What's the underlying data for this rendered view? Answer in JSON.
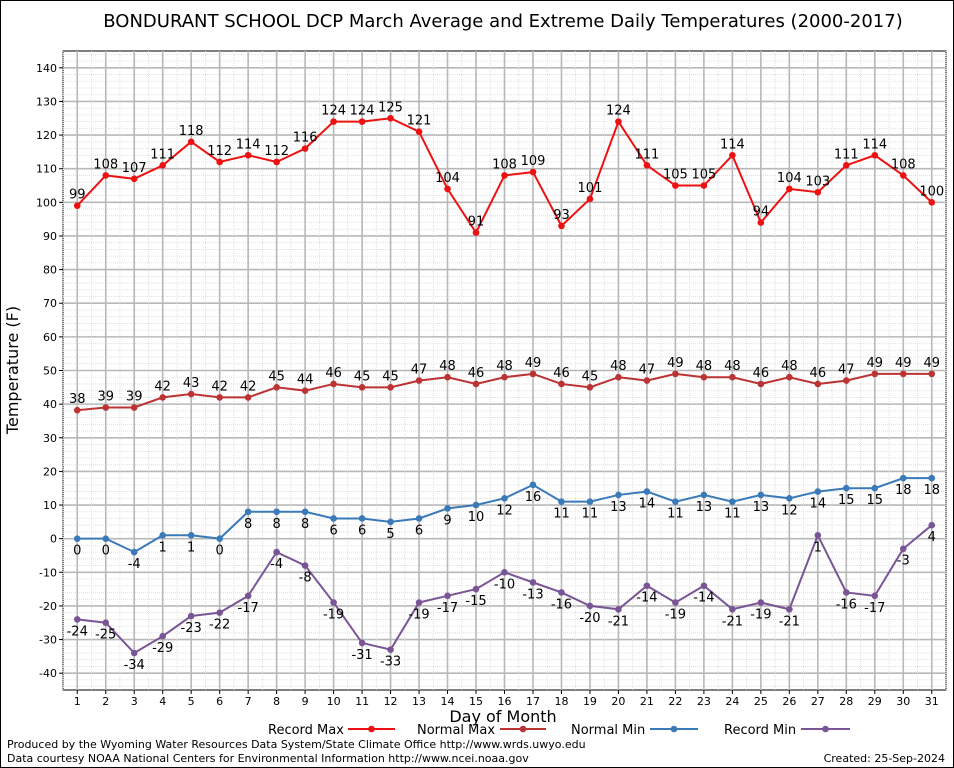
{
  "chart_data": {
    "type": "line",
    "title": "BONDURANT SCHOOL DCP March Average and Extreme Daily Temperatures (2000-2017)",
    "xlabel": "Day of Month",
    "ylabel": "Temperature (F)",
    "ylim": [
      -45,
      145
    ],
    "yticks": [
      -40,
      -30,
      -20,
      -10,
      0,
      10,
      20,
      30,
      40,
      50,
      60,
      70,
      80,
      90,
      100,
      110,
      120,
      130,
      140
    ],
    "x": [
      1,
      2,
      3,
      4,
      5,
      6,
      7,
      8,
      9,
      10,
      11,
      12,
      13,
      14,
      15,
      16,
      17,
      18,
      19,
      20,
      21,
      22,
      23,
      24,
      25,
      26,
      27,
      28,
      29,
      30,
      31
    ],
    "grid": true,
    "legend_position": "bottom",
    "series": [
      {
        "name": "Record Max",
        "color": "#ee1111",
        "label_position": "above",
        "values": [
          99,
          108,
          107,
          111,
          118,
          112,
          114,
          112,
          116,
          124,
          124,
          125,
          121,
          104,
          91,
          108,
          109,
          93,
          101,
          124,
          111,
          105,
          105,
          114,
          94,
          104,
          103,
          111,
          114,
          108,
          100
        ]
      },
      {
        "name": "Normal Max",
        "color": "#bb3333",
        "label_position": "above",
        "values": [
          38.2,
          39,
          39,
          42,
          43,
          42,
          42,
          45,
          44,
          46,
          45,
          45,
          47,
          48,
          46,
          48,
          49,
          46,
          45,
          48,
          47,
          49,
          48,
          48,
          46,
          48,
          46,
          47,
          49,
          49,
          49
        ]
      },
      {
        "name": "Normal Min",
        "color": "#3a7ab8",
        "label_position": "below",
        "values": [
          0,
          0,
          -4,
          1,
          1,
          0,
          8,
          8,
          8,
          6,
          6,
          5,
          6,
          9,
          10,
          12,
          16,
          11,
          11,
          13,
          14,
          11,
          13,
          11,
          13,
          12,
          14,
          15,
          15,
          18,
          18
        ],
        "labels": [
          "0",
          "0",
          "-4",
          "1",
          "1",
          "0",
          "8",
          "8",
          "8",
          "6",
          "6",
          "5",
          "6",
          "9",
          "10",
          "12",
          "16",
          "11",
          "11",
          "13",
          "14",
          "11",
          "13",
          "11",
          "13",
          "12",
          "14",
          "15",
          "15",
          "18",
          "18"
        ]
      },
      {
        "name": "Record Min",
        "color": "#7a5596",
        "label_position": "below",
        "values": [
          -24,
          -25,
          -34,
          -29,
          -23,
          -22,
          -17,
          -4,
          -8,
          -19,
          -31,
          -33,
          -19,
          -17,
          -15,
          -10,
          -13,
          -16,
          -20,
          -21,
          -14,
          -19,
          -14,
          -21,
          -19,
          -21,
          1,
          -16,
          -17,
          -3,
          4
        ]
      }
    ]
  },
  "legend": [
    {
      "label": "Record Max",
      "color": "#ee1111"
    },
    {
      "label": "Normal Max",
      "color": "#bb3333"
    },
    {
      "label": "Normal Min",
      "color": "#3a7ab8"
    },
    {
      "label": "Record Min",
      "color": "#7a5596"
    }
  ],
  "footer": {
    "produced_by": "Produced by the Wyoming Water Resources Data System/State Climate Office http://www.wrds.uwyo.edu",
    "courtesy": "Data courtesy NOAA National Centers for Environmental Information http://www.ncei.noaa.gov",
    "created": "Created:  25-Sep-2024"
  }
}
